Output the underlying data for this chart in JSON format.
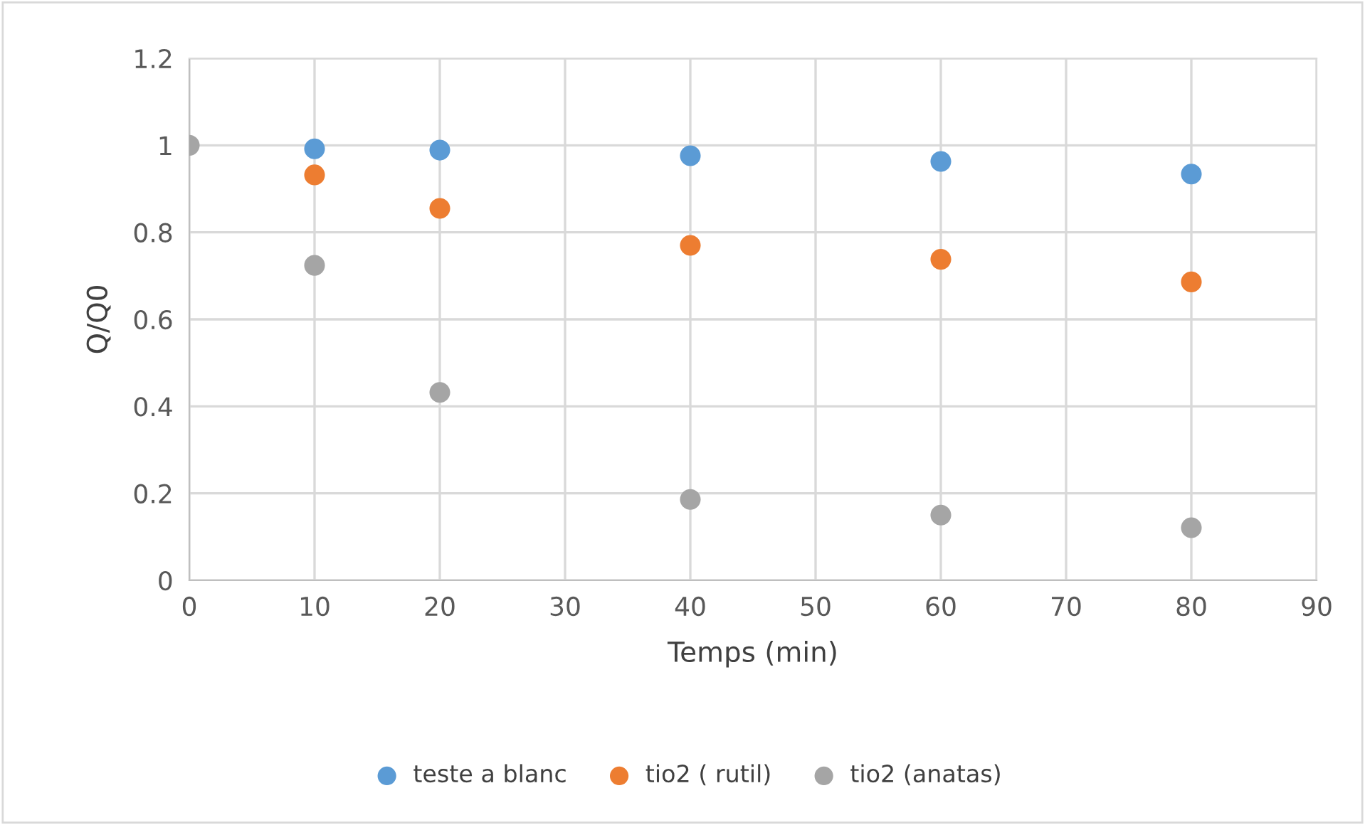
{
  "chart_data": {
    "type": "scatter",
    "xlabel": "Temps (min)",
    "ylabel": "Q/Q0",
    "x": [
      0,
      10,
      20,
      40,
      60,
      80
    ],
    "series": [
      {
        "name": "teste a blanc",
        "color": "#5b9bd5",
        "values": [
          null,
          0.992,
          0.989,
          0.976,
          0.963,
          0.934
        ]
      },
      {
        "name": "tio2 ( rutil)",
        "color": "#ed7d31",
        "values": [
          null,
          0.932,
          0.855,
          0.77,
          0.738,
          0.686
        ]
      },
      {
        "name": "tio2 (anatas)",
        "color": "#a5a5a5",
        "values": [
          1.0,
          0.724,
          0.432,
          0.186,
          0.15,
          0.121
        ]
      }
    ],
    "xlim": [
      0,
      90
    ],
    "xticks": [
      0,
      10,
      20,
      30,
      40,
      50,
      60,
      70,
      80,
      90
    ],
    "ylim": [
      0,
      1.2
    ],
    "yticks": [
      {
        "value": 0,
        "label": "0"
      },
      {
        "value": 0.2,
        "label": "0.2"
      },
      {
        "value": 0.4,
        "label": "0.4"
      },
      {
        "value": 0.6,
        "label": "0.6"
      },
      {
        "value": 0.8,
        "label": "0.8"
      },
      {
        "value": 1,
        "label": "1"
      },
      {
        "value": 1.2,
        "label": "1.2"
      }
    ],
    "grid": true,
    "legend": "bottom",
    "marker": "circle"
  }
}
